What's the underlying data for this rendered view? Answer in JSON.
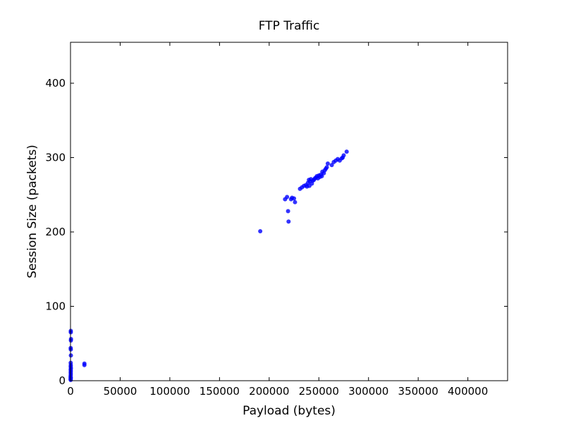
{
  "chart_data": {
    "type": "scatter",
    "title": "FTP Traffic",
    "xlabel": "Payload (bytes)",
    "ylabel": "Session Size (packets)",
    "xlim": [
      0,
      440000
    ],
    "ylim": [
      0,
      455
    ],
    "xticks": [
      0,
      50000,
      100000,
      150000,
      200000,
      250000,
      300000,
      350000,
      400000
    ],
    "yticks": [
      0,
      100,
      200,
      300,
      400
    ],
    "grid": false,
    "legend": "none",
    "marker_color": "#0000ff",
    "series": [
      {
        "points": [
          [
            300,
            67
          ],
          [
            300,
            65
          ],
          [
            500,
            56
          ],
          [
            400,
            54
          ],
          [
            200,
            44
          ],
          [
            300,
            42
          ],
          [
            400,
            34
          ],
          [
            200,
            24
          ],
          [
            300,
            21
          ],
          [
            200,
            19
          ],
          [
            400,
            17
          ],
          [
            200,
            15
          ],
          [
            300,
            13
          ],
          [
            200,
            11
          ],
          [
            300,
            9
          ],
          [
            200,
            7
          ],
          [
            100,
            5
          ],
          [
            300,
            4
          ],
          [
            200,
            3
          ],
          [
            100,
            2
          ],
          [
            200,
            1
          ],
          [
            14000,
            23
          ],
          [
            14000,
            21
          ],
          [
            191000,
            201
          ],
          [
            216000,
            244
          ],
          [
            218000,
            247
          ],
          [
            219000,
            228
          ],
          [
            219500,
            214
          ],
          [
            222000,
            244
          ],
          [
            223000,
            246
          ],
          [
            225000,
            245
          ],
          [
            226000,
            240
          ],
          [
            231000,
            258
          ],
          [
            233000,
            260
          ],
          [
            235000,
            262
          ],
          [
            237000,
            263
          ],
          [
            238000,
            261
          ],
          [
            239000,
            266
          ],
          [
            240000,
            270
          ],
          [
            240500,
            262
          ],
          [
            241000,
            268
          ],
          [
            242000,
            271
          ],
          [
            243000,
            265
          ],
          [
            244000,
            269
          ],
          [
            245000,
            270
          ],
          [
            246000,
            272
          ],
          [
            247000,
            273
          ],
          [
            248000,
            275
          ],
          [
            249000,
            272
          ],
          [
            250000,
            276
          ],
          [
            251000,
            274
          ],
          [
            252000,
            277
          ],
          [
            253000,
            275
          ],
          [
            253500,
            281
          ],
          [
            255000,
            279
          ],
          [
            256000,
            283
          ],
          [
            257000,
            285
          ],
          [
            258000,
            287
          ],
          [
            259000,
            292
          ],
          [
            263000,
            290
          ],
          [
            265000,
            294
          ],
          [
            267000,
            296
          ],
          [
            269000,
            298
          ],
          [
            271000,
            296
          ],
          [
            273000,
            299
          ],
          [
            274000,
            300
          ],
          [
            275000,
            303
          ],
          [
            278000,
            308
          ]
        ]
      }
    ]
  }
}
